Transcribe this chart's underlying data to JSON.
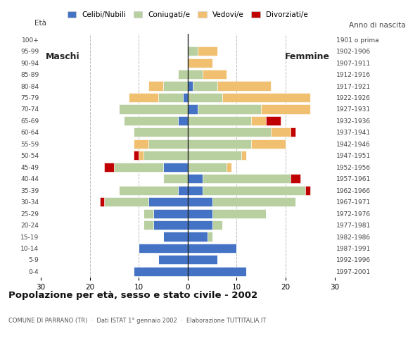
{
  "age_groups": [
    "0-4",
    "5-9",
    "10-14",
    "15-19",
    "20-24",
    "25-29",
    "30-34",
    "35-39",
    "40-44",
    "45-49",
    "50-54",
    "55-59",
    "60-64",
    "65-69",
    "70-74",
    "75-79",
    "80-84",
    "85-89",
    "90-94",
    "95-99",
    "100+"
  ],
  "birth_years": [
    "1997-2001",
    "1992-1996",
    "1987-1991",
    "1982-1986",
    "1977-1981",
    "1972-1976",
    "1967-1971",
    "1962-1966",
    "1957-1961",
    "1952-1956",
    "1947-1951",
    "1942-1946",
    "1937-1941",
    "1932-1936",
    "1927-1931",
    "1922-1926",
    "1917-1921",
    "1912-1916",
    "1907-1911",
    "1902-1906",
    "1901 o prima"
  ],
  "male": {
    "celibinubili": [
      11,
      6,
      10,
      5,
      7,
      7,
      8,
      2,
      0,
      5,
      0,
      0,
      0,
      2,
      0,
      1,
      0,
      0,
      0,
      0,
      0
    ],
    "coniugati": [
      0,
      0,
      0,
      0,
      2,
      2,
      9,
      12,
      5,
      10,
      9,
      8,
      11,
      11,
      14,
      5,
      5,
      2,
      0,
      0,
      0
    ],
    "vedovi": [
      0,
      0,
      0,
      0,
      0,
      0,
      0,
      0,
      0,
      0,
      1,
      3,
      0,
      0,
      0,
      6,
      3,
      0,
      0,
      0,
      0
    ],
    "divorziati": [
      0,
      0,
      0,
      0,
      0,
      0,
      1,
      0,
      0,
      2,
      1,
      0,
      0,
      0,
      0,
      0,
      0,
      0,
      0,
      0,
      0
    ]
  },
  "female": {
    "celibinubili": [
      12,
      6,
      10,
      4,
      5,
      5,
      5,
      3,
      3,
      0,
      0,
      0,
      0,
      0,
      2,
      0,
      1,
      0,
      0,
      0,
      0
    ],
    "coniugati": [
      0,
      0,
      0,
      1,
      2,
      11,
      17,
      21,
      18,
      8,
      11,
      13,
      17,
      13,
      13,
      7,
      5,
      3,
      0,
      2,
      0
    ],
    "vedovi": [
      0,
      0,
      0,
      0,
      0,
      0,
      0,
      0,
      0,
      1,
      1,
      7,
      4,
      3,
      10,
      18,
      11,
      5,
      5,
      4,
      0
    ],
    "divorziati": [
      0,
      0,
      0,
      0,
      0,
      0,
      0,
      1,
      2,
      0,
      0,
      0,
      1,
      3,
      0,
      0,
      0,
      0,
      0,
      0,
      0
    ]
  },
  "colors": {
    "celibinubili": "#4472c4",
    "coniugati": "#b8cfa0",
    "vedovi": "#f0c070",
    "divorziati": "#c00000"
  },
  "xlim": 30,
  "title": "Popolazione per età, sesso e stato civile - 2002",
  "subtitle": "COMUNE DI PARRANO (TR)  ·  Dati ISTAT 1° gennaio 2002  ·  Elaborazione TUTTITALIA.IT",
  "xlabel_left": "Età",
  "xlabel_right": "Anno di nascita",
  "label_maschi": "Maschi",
  "label_femmine": "Femmine",
  "legend_labels": [
    "Celibi/Nubili",
    "Coniugati/e",
    "Vedovi/e",
    "Divorziati/e"
  ],
  "bg_color": "#ffffff",
  "grid_color": "#bbbbbb"
}
